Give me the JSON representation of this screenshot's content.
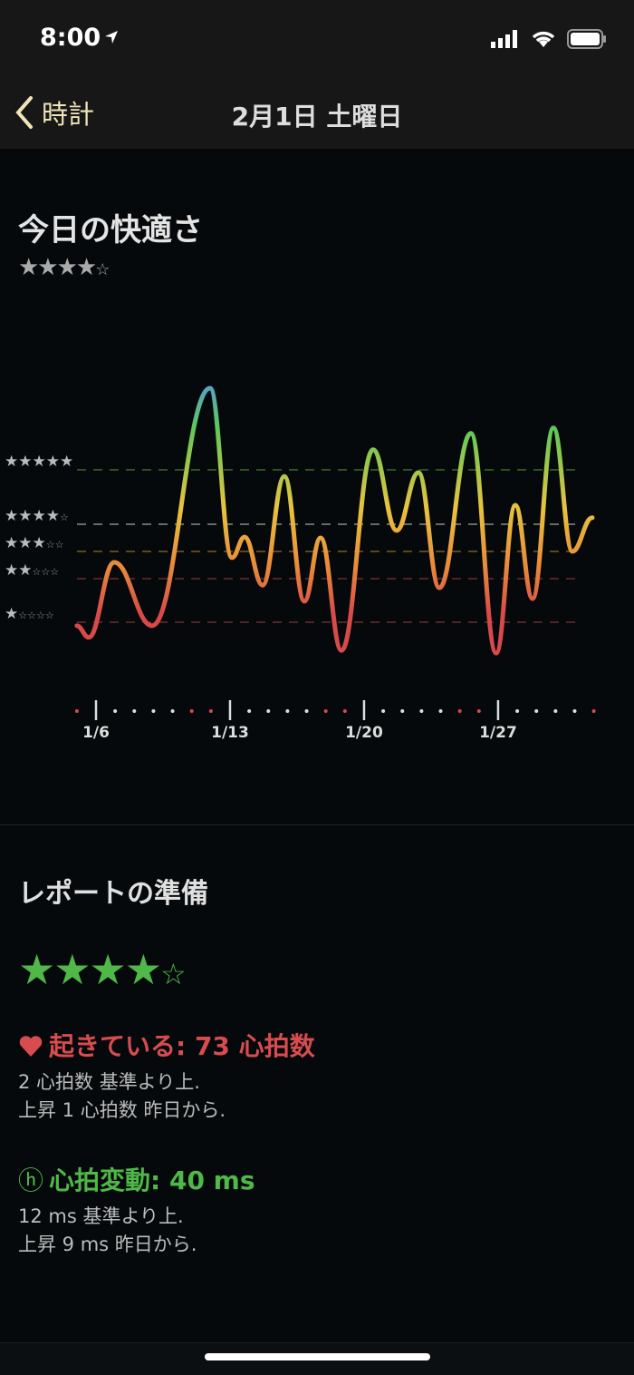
{
  "status_bar": {
    "time": "8:00"
  },
  "nav": {
    "back_label": "時計",
    "title": "2月1日 土曜日"
  },
  "comfort": {
    "title": "今日の快適さ",
    "stars_filled": "★★★★",
    "stars_empty": "☆",
    "rating": 4
  },
  "chart_data": {
    "type": "line",
    "y_levels": [
      {
        "rating": 5,
        "label_filled": "★★★★★",
        "label_empty": "",
        "color": "#3d6b2c"
      },
      {
        "rating": 4,
        "label_filled": "★★★★",
        "label_empty": "☆",
        "color": "#8a8a86"
      },
      {
        "rating": 3,
        "label_filled": "★★★",
        "label_empty": "☆☆",
        "color": "#7a5a22"
      },
      {
        "rating": 2,
        "label_filled": "★★",
        "label_empty": "☆☆☆",
        "color": "#6a2c2c"
      },
      {
        "rating": 1,
        "label_filled": "★",
        "label_empty": "☆☆☆☆",
        "color": "#6a2c2c"
      }
    ],
    "x_ticks": [
      {
        "day": 6,
        "label": "1/6"
      },
      {
        "day": 13,
        "label": "1/13"
      },
      {
        "day": 20,
        "label": "1/20"
      },
      {
        "day": 27,
        "label": "1/27"
      }
    ],
    "x_range_days": [
      5,
      32
    ],
    "red_days": [
      5,
      11,
      12,
      18,
      19,
      25,
      26,
      32
    ],
    "points": [
      [
        5.0,
        0.92
      ],
      [
        5.62,
        0.65
      ],
      [
        6.95,
        2.6
      ],
      [
        8.93,
        0.92
      ],
      [
        11.96,
        6.5
      ],
      [
        13.1,
        2.77
      ],
      [
        13.76,
        3.53
      ],
      [
        14.7,
        1.85
      ],
      [
        15.84,
        4.88
      ],
      [
        16.88,
        1.48
      ],
      [
        17.73,
        3.5
      ],
      [
        18.82,
        0.35
      ],
      [
        20.47,
        5.37
      ],
      [
        21.7,
        3.77
      ],
      [
        22.84,
        4.95
      ],
      [
        23.93,
        1.79
      ],
      [
        25.58,
        5.67
      ],
      [
        26.9,
        0.29
      ],
      [
        27.9,
        4.35
      ],
      [
        28.8,
        1.54
      ],
      [
        29.89,
        5.77
      ],
      [
        30.88,
        3.0
      ],
      [
        31.92,
        4.12
      ]
    ]
  },
  "report": {
    "title": "レポートの準備",
    "stars_filled": "★★★★",
    "stars_empty": "☆",
    "rating": 4,
    "heart": {
      "icon": "heart-icon",
      "label": "起きている: 73 心拍数",
      "line1": "2 心拍数 基準より上.",
      "line2": "上昇 1 心拍数 昨日から.",
      "color": "#d84c4f"
    },
    "hrv": {
      "icon": "circled-h-icon",
      "glyph": "ⓗ",
      "label": "心拍変動: 40 ms",
      "line1": "12 ms 基準より上.",
      "line2": "上昇 9 ms 昨日から.",
      "color": "#4fb848"
    }
  }
}
